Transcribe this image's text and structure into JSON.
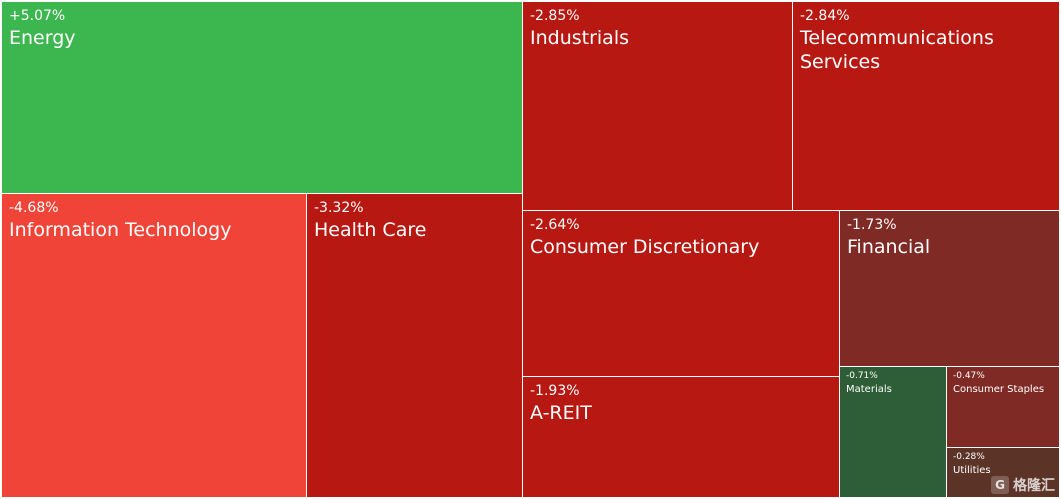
{
  "chart_data": {
    "type": "treemap",
    "tiles": [
      {
        "name": "Energy",
        "change": "+5.07%",
        "value": 5.07,
        "color": "#3cb64f"
      },
      {
        "name": "Information Technology",
        "change": "-4.68%",
        "value": -4.68,
        "color": "#f04438"
      },
      {
        "name": "Health Care",
        "change": "-3.32%",
        "value": -3.32,
        "color": "#b71912"
      },
      {
        "name": "Industrials",
        "change": "-2.85%",
        "value": -2.85,
        "color": "#b71912"
      },
      {
        "name": "Telecommunications Services",
        "change": "-2.84%",
        "value": -2.84,
        "color": "#b71912"
      },
      {
        "name": "Consumer Discretionary",
        "change": "-2.64%",
        "value": -2.64,
        "color": "#b71912"
      },
      {
        "name": "Financial",
        "change": "-1.73%",
        "value": -1.73,
        "color": "#7f2a25"
      },
      {
        "name": "A-REIT",
        "change": "-1.93%",
        "value": -1.93,
        "color": "#b71912"
      },
      {
        "name": "Materials",
        "change": "-0.71%",
        "value": -0.71,
        "color": "#2e5e37"
      },
      {
        "name": "Consumer Staples",
        "change": "-0.47%",
        "value": -0.47,
        "color": "#7f2a25"
      },
      {
        "name": "Utilities",
        "change": "-0.28%",
        "value": -0.28,
        "color": "#5c3427"
      }
    ]
  },
  "watermark": {
    "logo_letter": "G",
    "text": "格隆汇"
  }
}
